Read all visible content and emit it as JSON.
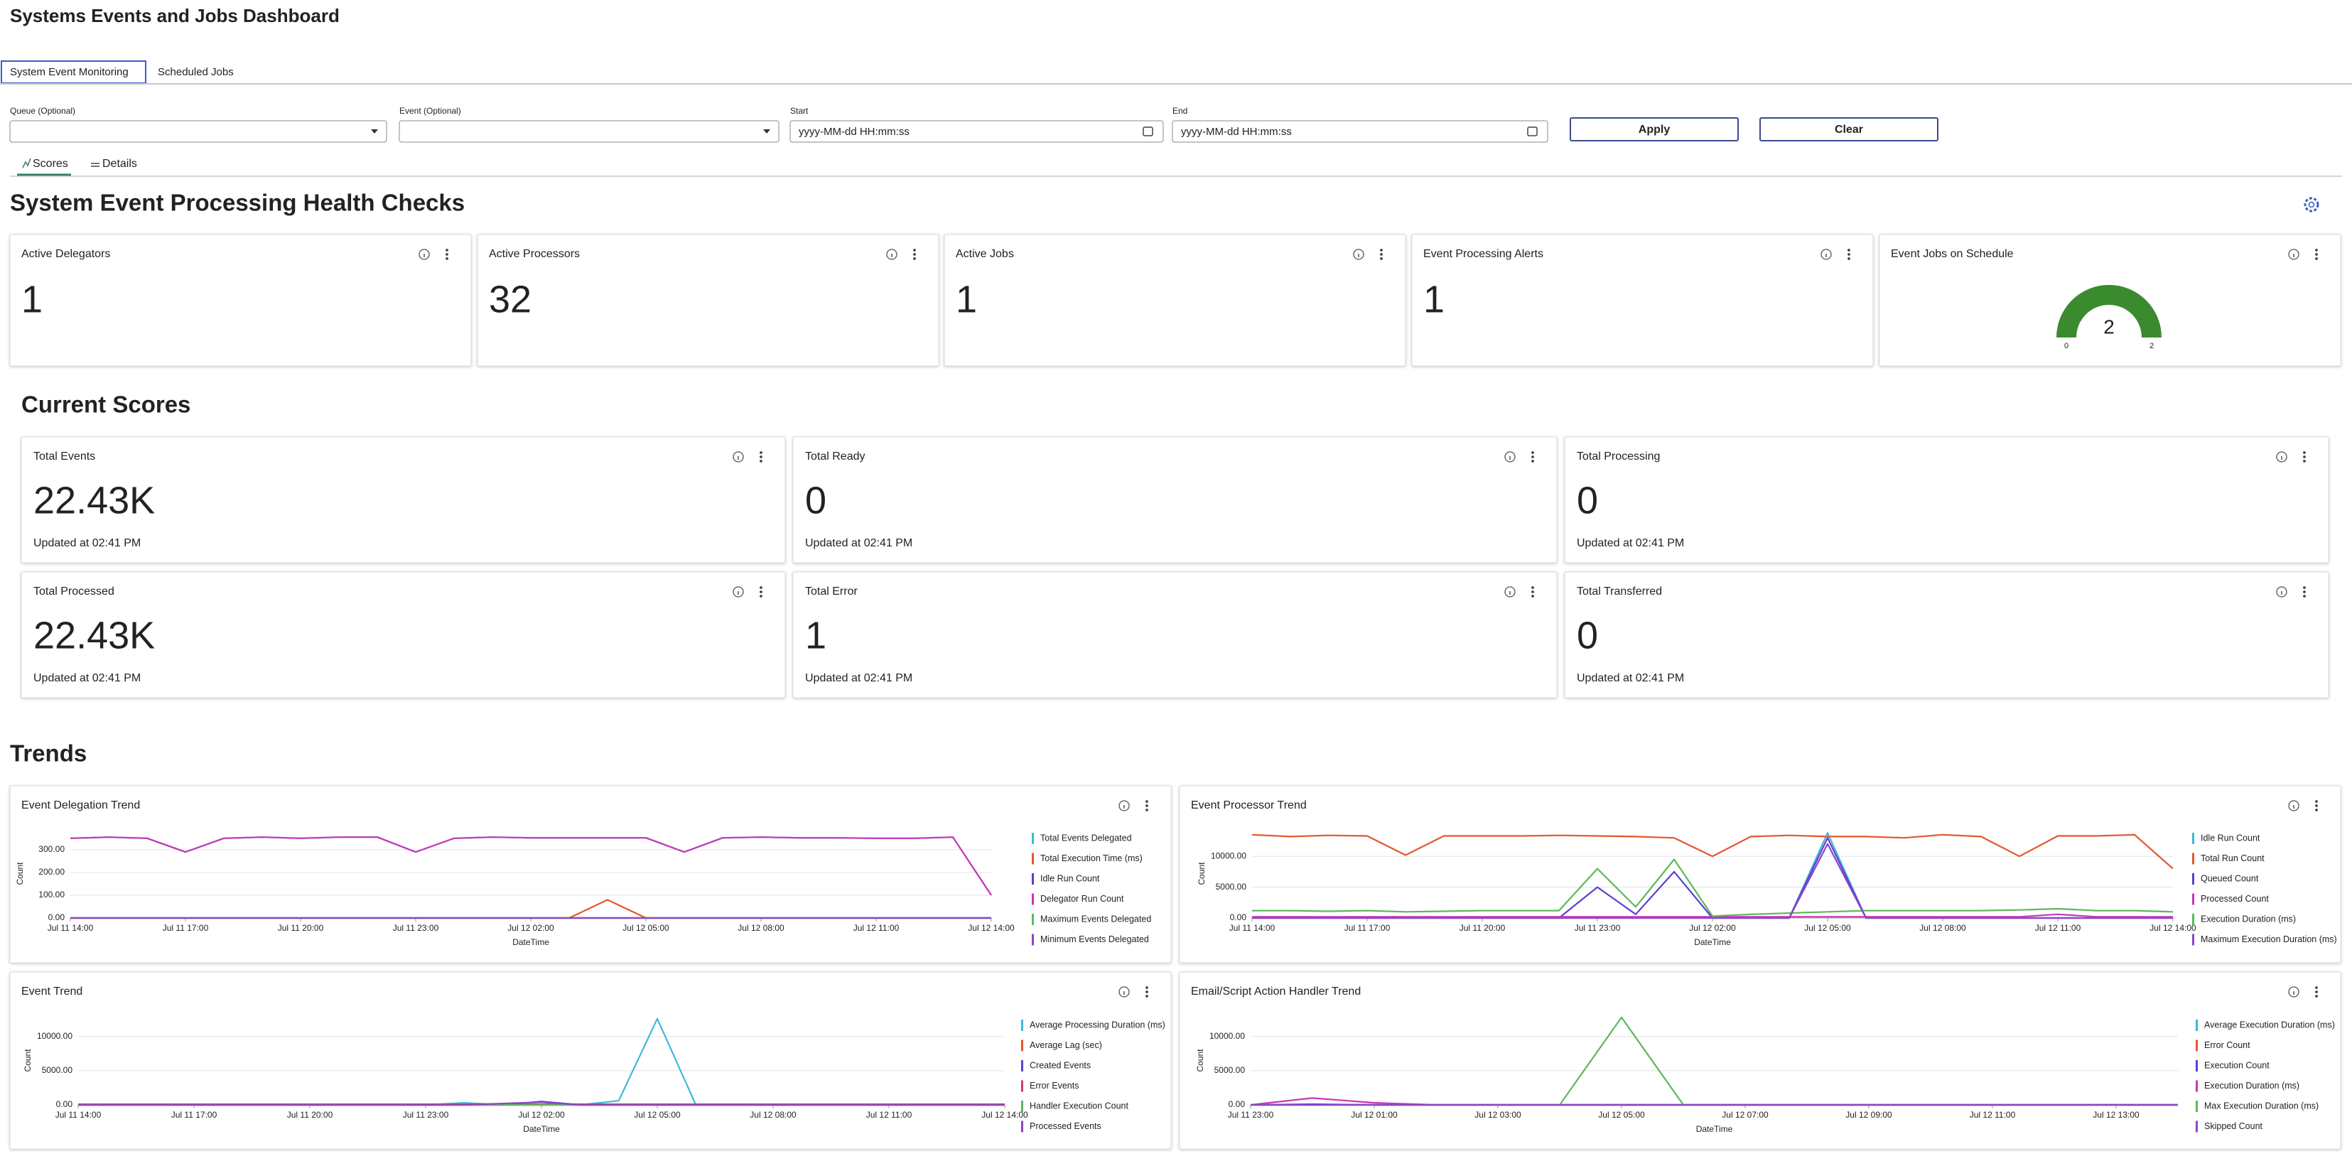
{
  "header": {
    "title": "Systems Events and Jobs Dashboard"
  },
  "tabs": [
    "System Event Monitoring",
    "Scheduled Jobs"
  ],
  "filters": {
    "queue_label": "Queue (Optional)",
    "event_label": "Event (Optional)",
    "start_label": "Start",
    "start_placeholder": "yyyy-MM-dd HH:mm:ss",
    "end_label": "End",
    "end_placeholder": "yyyy-MM-dd HH:mm:ss",
    "apply": "Apply",
    "clear": "Clear"
  },
  "subtabs": [
    "Scores",
    "Details"
  ],
  "health": {
    "title": "System Event Processing Health Checks",
    "cards": [
      {
        "title": "Active Delegators",
        "value": 1,
        "color": "#3a8a2e"
      },
      {
        "title": "Active Processors",
        "value": 32,
        "color": "#3a8a2e"
      },
      {
        "title": "Active Jobs",
        "value": 1,
        "color": "#3a8a2e"
      },
      {
        "title": "Event Processing Alerts",
        "value": 1,
        "color": "#a01c2a"
      }
    ],
    "gauge": {
      "title": "Event Jobs on Schedule",
      "value": 2,
      "min": 0,
      "max": 2,
      "color": "#3a8a2e"
    }
  },
  "scores": {
    "title": "Current Scores",
    "cards": [
      {
        "title": "Total Events",
        "value": "22.43K",
        "updated": "Updated at 02:41 PM"
      },
      {
        "title": "Total Ready",
        "value": "0",
        "updated": "Updated at 02:41 PM"
      },
      {
        "title": "Total Processing",
        "value": "0",
        "updated": "Updated at 02:41 PM"
      },
      {
        "title": "Total Processed",
        "value": "22.43K",
        "updated": "Updated at 02:41 PM"
      },
      {
        "title": "Total Error",
        "value": "1",
        "updated": "Updated at 02:41 PM"
      },
      {
        "title": "Total Transferred",
        "value": "0",
        "updated": "Updated at 02:41 PM"
      }
    ]
  },
  "trends": {
    "title": "Trends"
  },
  "chart_data": [
    {
      "type": "line",
      "title": "Event Delegation Trend",
      "x_label": "DateTime",
      "y_label": "Count",
      "grid": true,
      "categories": [
        "Jul 11 14:00",
        null,
        null,
        "Jul 11 17:00",
        null,
        null,
        "Jul 11 20:00",
        null,
        null,
        "Jul 11 23:00",
        null,
        null,
        "Jul 12 02:00",
        null,
        null,
        "Jul 12 05:00",
        null,
        null,
        "Jul 12 08:00",
        null,
        null,
        "Jul 12 11:00",
        null,
        null,
        "Jul 12 14:00"
      ],
      "ylim": [
        0,
        390
      ],
      "yticks": [
        {
          "value": 0,
          "label": "0.00"
        },
        {
          "value": 100,
          "label": "100.00"
        },
        {
          "value": 200,
          "label": "200.00"
        },
        {
          "value": 300,
          "label": "300.00"
        }
      ],
      "series": [
        {
          "name": "Total Events Delegated",
          "color": "#3fb8d8",
          "values": [
            350,
            355,
            350,
            290,
            350,
            355,
            350,
            355,
            355,
            290,
            350,
            355,
            352,
            352,
            352,
            352,
            290,
            352,
            355,
            352,
            352,
            350,
            350,
            355,
            100
          ]
        },
        {
          "name": "Total Execution Time (ms)",
          "color": "#e4572e",
          "values": [
            0,
            0,
            0,
            0,
            0,
            0,
            0,
            0,
            0,
            0,
            0,
            0,
            0,
            0,
            80,
            0,
            0,
            0,
            0,
            0,
            0,
            0,
            0,
            0,
            0
          ]
        },
        {
          "name": "Idle Run Count",
          "color": "#5b3fd0",
          "values": [
            0,
            0,
            0,
            0,
            0,
            0,
            0,
            0,
            0,
            0,
            0,
            0,
            0,
            0,
            0,
            0,
            0,
            0,
            0,
            0,
            0,
            0,
            0,
            0,
            0
          ]
        },
        {
          "name": "Delegator Run Count",
          "color": "#c935b8",
          "values": [
            350,
            355,
            350,
            290,
            350,
            355,
            350,
            355,
            355,
            290,
            350,
            355,
            352,
            352,
            352,
            352,
            290,
            352,
            355,
            352,
            352,
            350,
            350,
            355,
            100
          ]
        },
        {
          "name": "Maximum Events Delegated",
          "color": "#5cb85c",
          "values": [
            0,
            0,
            0,
            0,
            0,
            0,
            0,
            0,
            0,
            0,
            0,
            0,
            0,
            0,
            0,
            0,
            0,
            0,
            0,
            0,
            0,
            0,
            0,
            0,
            0
          ]
        },
        {
          "name": "Minimum Events Delegated",
          "color": "#8e44c9",
          "values": [
            0,
            0,
            0,
            0,
            0,
            0,
            0,
            0,
            0,
            0,
            0,
            0,
            0,
            0,
            0,
            0,
            0,
            0,
            0,
            0,
            0,
            0,
            0,
            0,
            0
          ]
        }
      ]
    },
    {
      "type": "line",
      "title": "Event Processor Trend",
      "x_label": "DateTime",
      "y_label": "Count",
      "grid": true,
      "categories": [
        "Jul 11 14:00",
        null,
        null,
        "Jul 11 17:00",
        null,
        null,
        "Jul 11 20:00",
        null,
        null,
        "Jul 11 23:00",
        null,
        null,
        "Jul 12 02:00",
        null,
        null,
        "Jul 12 05:00",
        null,
        null,
        "Jul 12 08:00",
        null,
        null,
        "Jul 12 11:00",
        null,
        null,
        "Jul 12 14:00"
      ],
      "ylim": [
        0,
        14400
      ],
      "yticks": [
        {
          "value": 0,
          "label": "0.00"
        },
        {
          "value": 5000,
          "label": "5000.00"
        },
        {
          "value": 10000,
          "label": "10000.00"
        }
      ],
      "series": [
        {
          "name": "Idle Run Count",
          "color": "#3fb8d8",
          "values": [
            0,
            0,
            0,
            0,
            0,
            0,
            0,
            0,
            0,
            0,
            0,
            0,
            0,
            0,
            0,
            13800,
            0,
            0,
            0,
            0,
            0,
            0,
            0,
            0,
            0
          ]
        },
        {
          "name": "Total Run Count",
          "color": "#e4572e",
          "values": [
            13500,
            13200,
            13400,
            13300,
            10200,
            13300,
            13300,
            13300,
            13400,
            13300,
            13200,
            13000,
            10000,
            13200,
            13400,
            13200,
            13200,
            13000,
            13500,
            13200,
            10000,
            13300,
            13300,
            13500,
            8000
          ]
        },
        {
          "name": "Queued Count",
          "color": "#5b3fd0",
          "values": [
            0,
            0,
            0,
            0,
            0,
            0,
            0,
            0,
            0,
            5000,
            600,
            7500,
            0,
            0,
            0,
            13000,
            0,
            0,
            0,
            0,
            0,
            0,
            0,
            0,
            0
          ]
        },
        {
          "name": "Processed Count",
          "color": "#c935b8",
          "values": [
            200,
            200,
            200,
            200,
            200,
            200,
            200,
            200,
            200,
            200,
            200,
            200,
            200,
            200,
            200,
            200,
            200,
            200,
            200,
            200,
            200,
            600,
            200,
            200,
            200
          ]
        },
        {
          "name": "Execution Duration (ms)",
          "color": "#5cb85c",
          "values": [
            1200,
            1200,
            1100,
            1200,
            1000,
            1100,
            1200,
            1200,
            1200,
            8000,
            1800,
            9500,
            300,
            600,
            800,
            1000,
            1200,
            1200,
            1200,
            1200,
            1300,
            1500,
            1200,
            1200,
            1000
          ]
        },
        {
          "name": "Maximum Execution Duration (ms)",
          "color": "#8e44c9",
          "values": [
            0,
            0,
            0,
            0,
            0,
            0,
            0,
            0,
            0,
            0,
            0,
            0,
            0,
            0,
            0,
            12000,
            0,
            0,
            0,
            0,
            0,
            0,
            0,
            0,
            0
          ]
        }
      ]
    },
    {
      "type": "line",
      "title": "Event Trend",
      "x_label": "DateTime",
      "y_label": "Count",
      "grid": true,
      "categories": [
        "Jul 11 14:00",
        null,
        null,
        "Jul 11 17:00",
        null,
        null,
        "Jul 11 20:00",
        null,
        null,
        "Jul 11 23:00",
        null,
        null,
        "Jul 12 02:00",
        null,
        null,
        "Jul 12 05:00",
        null,
        null,
        "Jul 12 08:00",
        null,
        null,
        "Jul 12 11:00",
        null,
        null,
        "Jul 12 14:00"
      ],
      "ylim": [
        0,
        13000
      ],
      "yticks": [
        {
          "value": 0,
          "label": "0.00"
        },
        {
          "value": 5000,
          "label": "5000.00"
        },
        {
          "value": 10000,
          "label": "10000.00"
        }
      ],
      "series": [
        {
          "name": "Average Processing Duration (ms)",
          "color": "#3fb8d8",
          "values": [
            0,
            0,
            0,
            0,
            0,
            0,
            0,
            0,
            0,
            0,
            300,
            0,
            0,
            0,
            600,
            12600,
            0,
            0,
            0,
            0,
            0,
            0,
            0,
            0,
            0
          ]
        },
        {
          "name": "Average Lag (sec)",
          "color": "#e4572e",
          "values": [
            100,
            100,
            100,
            100,
            100,
            100,
            100,
            100,
            100,
            100,
            100,
            100,
            100,
            100,
            100,
            100,
            100,
            100,
            100,
            100,
            100,
            100,
            100,
            100,
            100
          ]
        },
        {
          "name": "Created Events",
          "color": "#5b3fd0",
          "values": [
            0,
            0,
            0,
            0,
            0,
            0,
            0,
            0,
            0,
            0,
            0,
            0,
            500,
            0,
            0,
            0,
            0,
            0,
            0,
            0,
            0,
            0,
            0,
            0,
            0
          ]
        },
        {
          "name": "Error Events",
          "color": "#d9366b",
          "values": [
            0,
            0,
            0,
            0,
            0,
            0,
            0,
            0,
            0,
            0,
            0,
            0,
            0,
            0,
            0,
            0,
            0,
            0,
            0,
            0,
            0,
            0,
            0,
            0,
            0
          ]
        },
        {
          "name": "Handler Execution Count",
          "color": "#5cb85c",
          "values": [
            0,
            0,
            0,
            0,
            0,
            0,
            0,
            0,
            0,
            0,
            0,
            0,
            0,
            0,
            0,
            0,
            0,
            0,
            0,
            0,
            0,
            0,
            0,
            0,
            0
          ]
        },
        {
          "name": "Processed Events",
          "color": "#8e44c9",
          "values": [
            0,
            0,
            0,
            0,
            0,
            0,
            0,
            0,
            0,
            0,
            0,
            200,
            400,
            0,
            0,
            0,
            0,
            0,
            0,
            0,
            0,
            0,
            0,
            0,
            0
          ]
        }
      ]
    },
    {
      "type": "line",
      "title": "Email/Script Action Handler Trend",
      "x_label": "DateTime",
      "y_label": "Count",
      "grid": true,
      "categories": [
        "Jul 11 23:00",
        null,
        "Jul 12 01:00",
        null,
        "Jul 12 03:00",
        null,
        "Jul 12 05:00",
        null,
        "Jul 12 07:00",
        null,
        "Jul 12 09:00",
        null,
        "Jul 12 11:00",
        null,
        "Jul 12 13:00",
        null
      ],
      "ylim": [
        0,
        13000
      ],
      "yticks": [
        {
          "value": 0,
          "label": "0.00"
        },
        {
          "value": 5000,
          "label": "5000.00"
        },
        {
          "value": 10000,
          "label": "10000.00"
        }
      ],
      "series": [
        {
          "name": "Average Execution Duration (ms)",
          "color": "#3fb8d8",
          "values": [
            0,
            0,
            0,
            0,
            0,
            0,
            0,
            0,
            0,
            0,
            0,
            0,
            0,
            0,
            0,
            0
          ]
        },
        {
          "name": "Error Count",
          "color": "#e4572e",
          "values": [
            0,
            0,
            0,
            0,
            0,
            0,
            0,
            0,
            0,
            0,
            0,
            0,
            0,
            0,
            0,
            0
          ]
        },
        {
          "name": "Execution Count",
          "color": "#5b3fd0",
          "values": [
            0,
            100,
            0,
            0,
            0,
            0,
            0,
            0,
            0,
            0,
            0,
            0,
            0,
            0,
            0,
            0
          ]
        },
        {
          "name": "Execution Duration (ms)",
          "color": "#c935b8",
          "values": [
            0,
            1000,
            300,
            0,
            0,
            0,
            0,
            0,
            0,
            0,
            0,
            0,
            0,
            0,
            0,
            0
          ]
        },
        {
          "name": "Max Execution Duration (ms)",
          "color": "#5cb85c",
          "values": [
            0,
            0,
            0,
            0,
            0,
            0,
            12800,
            0,
            0,
            0,
            0,
            0,
            0,
            0,
            0,
            0
          ]
        },
        {
          "name": "Skipped Count",
          "color": "#8e44c9",
          "values": [
            0,
            0,
            0,
            0,
            0,
            0,
            0,
            0,
            0,
            0,
            0,
            0,
            0,
            0,
            0,
            0
          ]
        }
      ]
    }
  ]
}
